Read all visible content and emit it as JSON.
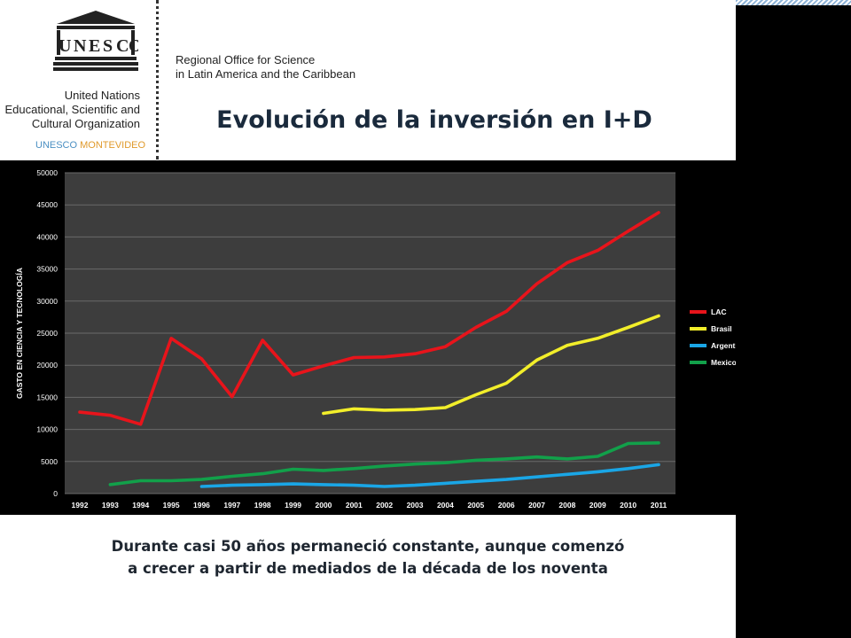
{
  "header": {
    "org_name_lines": [
      "United Nations",
      "Educational, Scientific and",
      "Cultural Organization"
    ],
    "logo_text": "UNESCO",
    "office_lines": [
      "Regional Office for Science",
      "in Latin America and the Caribbean"
    ],
    "montevideo": {
      "part1": "UNESCO",
      "part2": "MONTEVIDEO"
    },
    "title": "Evolución de la inversión en I+D"
  },
  "caption": {
    "line1": "Durante casi 50 años permaneció constante, aunque comenzó",
    "line2": "a crecer a partir de mediados de la década de los noventa"
  },
  "colors": {
    "lac": "#e8141b",
    "brasil": "#f2ee2a",
    "argentina": "#1aa6e6",
    "mexico": "#12a04a",
    "plot_bg": "#3d3d3d",
    "grid": "#6a6a6a"
  },
  "chart_data": {
    "type": "line",
    "title": "",
    "xlabel": "",
    "ylabel": "GASTO EN CIENCIA Y TECNOLOGÍA",
    "x": [
      "1992",
      "1993",
      "1994",
      "1995",
      "1996",
      "1997",
      "1998",
      "1999",
      "2000",
      "2001",
      "2002",
      "2003",
      "2004",
      "2005",
      "2006",
      "2007",
      "2008",
      "2009",
      "2010",
      "2011"
    ],
    "ylim": [
      0,
      50000
    ],
    "yticks": [
      "0",
      "5000",
      "10000",
      "15000",
      "20000",
      "25000",
      "30000",
      "35000",
      "40000",
      "45000",
      "50000"
    ],
    "grid": true,
    "legend_position": "right",
    "series": [
      {
        "name": "LAC",
        "color": "#e8141b",
        "values": [
          12700,
          12200,
          10800,
          24200,
          21000,
          15100,
          23900,
          18500,
          19900,
          21200,
          21300,
          21800,
          22900,
          25900,
          28400,
          32700,
          36000,
          37900,
          40900,
          43800
        ]
      },
      {
        "name": "Brasil",
        "color": "#f2ee2a",
        "values": [
          null,
          null,
          null,
          null,
          null,
          null,
          null,
          null,
          12500,
          13200,
          13000,
          13100,
          13400,
          15400,
          17200,
          20800,
          23100,
          24200,
          25900,
          27700
        ]
      },
      {
        "name": "Argentina",
        "color": "#1aa6e6",
        "values": [
          null,
          null,
          null,
          null,
          1100,
          1300,
          1400,
          1500,
          1400,
          1300,
          1100,
          1300,
          1600,
          1900,
          2200,
          2600,
          3000,
          3400,
          3900,
          4500
        ]
      },
      {
        "name": "Mexico",
        "color": "#12a04a",
        "values": [
          null,
          1400,
          2000,
          2000,
          2200,
          2700,
          3100,
          3800,
          3600,
          3900,
          4300,
          4600,
          4800,
          5200,
          5400,
          5700,
          5400,
          5800,
          7800,
          7900
        ]
      }
    ]
  }
}
